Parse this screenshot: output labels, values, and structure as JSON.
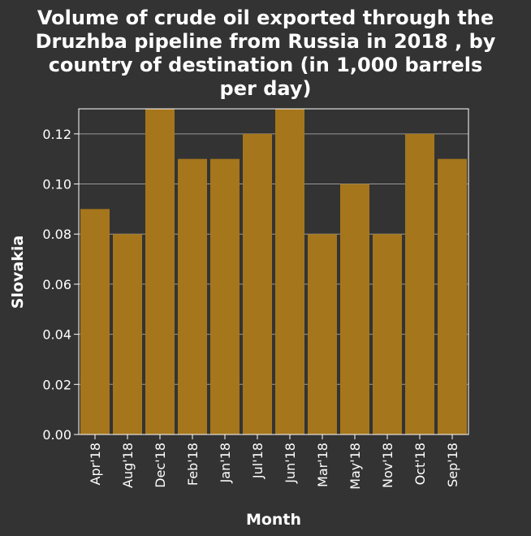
{
  "chart_data": {
    "type": "bar",
    "title": "Volume of crude oil exported through the Druzhba pipeline from Russia in 2018 , by country of destination (in 1,000 barrels per day)",
    "title_lines": [
      "Volume of crude oil exported through the",
      "Druzhba pipeline from Russia in 2018 , by",
      "country of destination (in 1,000 barrels",
      "per day)"
    ],
    "xlabel": "Month",
    "ylabel": "Slovakia",
    "categories": [
      "Apr'18",
      "Aug'18",
      "Dec'18",
      "Feb'18",
      "Jan'18",
      "Jul'18",
      "Jun'18",
      "Mar'18",
      "May'18",
      "Nov'18",
      "Oct'18",
      "Sep'18"
    ],
    "values": [
      0.09,
      0.08,
      0.13,
      0.11,
      0.11,
      0.12,
      0.13,
      0.08,
      0.1,
      0.08,
      0.12,
      0.11
    ],
    "ylim": [
      0,
      0.13
    ],
    "yticks": [
      "0.00",
      "0.02",
      "0.04",
      "0.06",
      "0.08",
      "0.10",
      "0.12"
    ],
    "grid": true,
    "bar_color": "#a5761c",
    "background_color": "#333333",
    "grid_color": "#999999"
  }
}
